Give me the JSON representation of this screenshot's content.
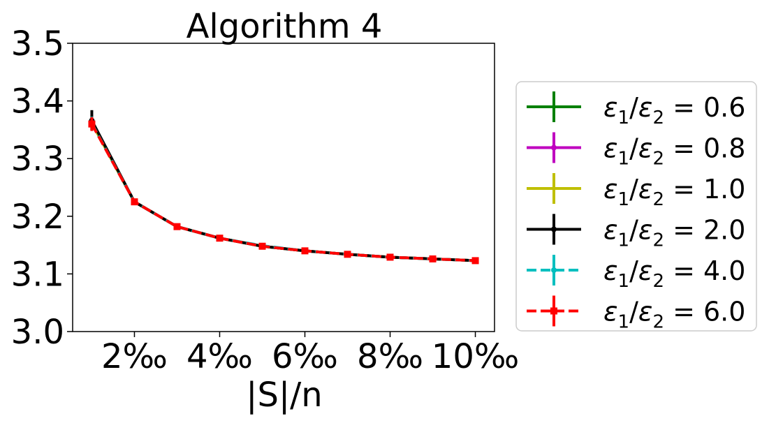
{
  "chart_data": {
    "type": "line",
    "title": "Algorithm 4",
    "xlabel": "|S|/n",
    "ylabel": "",
    "x": [
      1,
      2,
      3,
      4,
      5,
      6,
      7,
      8,
      9,
      10
    ],
    "xlim": [
      0.55,
      10.45
    ],
    "xticks": [
      {
        "value": 2,
        "label": "2‰"
      },
      {
        "value": 4,
        "label": "4‰"
      },
      {
        "value": 6,
        "label": "6‰"
      },
      {
        "value": 8,
        "label": "8‰"
      },
      {
        "value": 10,
        "label": "10‰"
      }
    ],
    "ylim": [
      3.0,
      3.5
    ],
    "yticks": [
      {
        "value": 3.0,
        "label": "3.0"
      },
      {
        "value": 3.1,
        "label": "3.1"
      },
      {
        "value": 3.2,
        "label": "3.2"
      },
      {
        "value": 3.3,
        "label": "3.3"
      },
      {
        "value": 3.4,
        "label": "3.4"
      },
      {
        "value": 3.5,
        "label": "3.5"
      }
    ],
    "grid": false,
    "legend_position": "right",
    "series": [
      {
        "name": "ε1/ε2 = 0.6",
        "legend_main": "ε",
        "legend_sub1": "1",
        "legend_sub2": "2",
        "legend_rest": " = 0.6",
        "color": "#008000",
        "dash": "solid",
        "marker": "none",
        "values": [
          3.362,
          3.225,
          3.182,
          3.162,
          3.148,
          3.14,
          3.134,
          3.129,
          3.126,
          3.123
        ],
        "errors": [
          0.012,
          0.004,
          0.002,
          0.002,
          0.002,
          0.001,
          0.001,
          0.001,
          0.001,
          0.001
        ]
      },
      {
        "name": "ε1/ε2 = 0.8",
        "legend_main": "ε",
        "legend_sub1": "1",
        "legend_sub2": "2",
        "legend_rest": " = 0.8",
        "color": "#bf00bf",
        "dash": "solid",
        "marker": "point",
        "values": [
          3.362,
          3.225,
          3.182,
          3.162,
          3.148,
          3.14,
          3.134,
          3.129,
          3.126,
          3.123
        ],
        "errors": [
          0.012,
          0.004,
          0.002,
          0.002,
          0.002,
          0.001,
          0.001,
          0.001,
          0.001,
          0.001
        ]
      },
      {
        "name": "ε1/ε2 = 1.0",
        "legend_main": "ε",
        "legend_sub1": "1",
        "legend_sub2": "2",
        "legend_rest": " = 1.0",
        "color": "#bfbf00",
        "dash": "solid",
        "marker": "none",
        "values": [
          3.362,
          3.225,
          3.182,
          3.162,
          3.148,
          3.14,
          3.134,
          3.129,
          3.126,
          3.123
        ],
        "errors": [
          0.012,
          0.004,
          0.002,
          0.002,
          0.002,
          0.001,
          0.001,
          0.001,
          0.001,
          0.001
        ]
      },
      {
        "name": "ε1/ε2 = 2.0",
        "legend_main": "ε",
        "legend_sub1": "1",
        "legend_sub2": "2",
        "legend_rest": " = 2.0",
        "color": "#000000",
        "dash": "solid",
        "marker": "point",
        "values": [
          3.366,
          3.225,
          3.182,
          3.162,
          3.148,
          3.14,
          3.134,
          3.129,
          3.126,
          3.123
        ],
        "errors": [
          0.018,
          0.004,
          0.002,
          0.002,
          0.004,
          0.002,
          0.002,
          0.001,
          0.001,
          0.001
        ]
      },
      {
        "name": "ε1/ε2 = 4.0",
        "legend_main": "ε",
        "legend_sub1": "1",
        "legend_sub2": "2",
        "legend_rest": " = 4.0",
        "color": "#00bfbf",
        "dash": "dashed",
        "marker": "point",
        "values": [
          3.361,
          3.225,
          3.182,
          3.162,
          3.149,
          3.14,
          3.134,
          3.129,
          3.126,
          3.123
        ],
        "errors": [
          0.012,
          0.004,
          0.002,
          0.002,
          0.004,
          0.002,
          0.001,
          0.001,
          0.001,
          0.001
        ]
      },
      {
        "name": "ε1/ε2 = 6.0",
        "legend_main": "ε",
        "legend_sub1": "1",
        "legend_sub2": "2",
        "legend_rest": " = 6.0",
        "color": "#ff0000",
        "dash": "dashed",
        "marker": "square",
        "values": [
          3.36,
          3.225,
          3.182,
          3.162,
          3.148,
          3.14,
          3.134,
          3.129,
          3.126,
          3.123
        ],
        "errors": [
          0.012,
          0.004,
          0.002,
          0.002,
          0.002,
          0.001,
          0.001,
          0.001,
          0.001,
          0.001
        ]
      }
    ]
  }
}
